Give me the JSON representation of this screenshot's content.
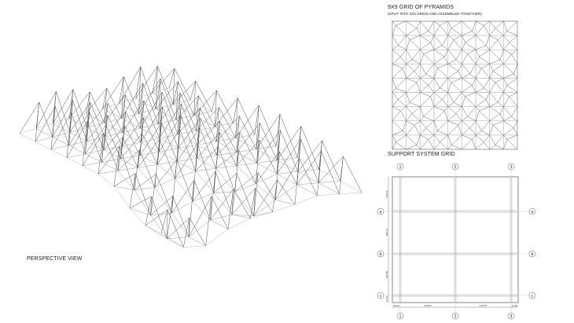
{
  "perspective": {
    "label": "PERSPECTIVE VIEW",
    "grid_size": 9
  },
  "pyramid_grid": {
    "title": "9X9 GRID OF PYRAMIDS",
    "subtitle": "(SPLIT INTO 3X3 GRIDS AND ASSEMBLED TOGETHER)",
    "grid_size": 9
  },
  "support_grid": {
    "title": "SUPPORT SYSTEM GRID",
    "column_labels": [
      "1",
      "2",
      "3"
    ],
    "row_labels": [
      "a",
      "b",
      "c"
    ],
    "horizontal_dimensions": [
      "21.00",
      "178.57",
      "178.57",
      "21.00"
    ],
    "vertical_dimensions": [
      "140.13",
      "180.13",
      "150.58",
      "21.37"
    ]
  },
  "colors": {
    "line": "#555555",
    "light_line": "#aaaaaa",
    "text": "#222222"
  }
}
